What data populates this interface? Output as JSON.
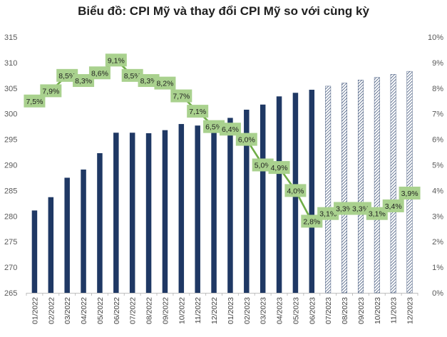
{
  "chart_data": {
    "type": "bar+line",
    "title": "Biểu đồ: CPI Mỹ và thay đổi CPI Mỹ so với cùng kỳ",
    "categories": [
      "01/2022",
      "02/2022",
      "03/2022",
      "04/2022",
      "05/2022",
      "06/2022",
      "07/2022",
      "08/2022",
      "09/2022",
      "10/2022",
      "11/2022",
      "12/2022",
      "01/2023",
      "02/2023",
      "03/2023",
      "04/2023",
      "05/2023",
      "06/2023",
      "07/2023",
      "08/2023",
      "09/2023",
      "10/2023",
      "11/2023",
      "12/2023"
    ],
    "series": [
      {
        "name": "CPI Mỹ",
        "type": "bar",
        "axis": "left",
        "values": [
          281.1,
          283.7,
          287.5,
          289.1,
          292.3,
          296.3,
          296.3,
          296.2,
          296.8,
          298.0,
          297.7,
          296.8,
          299.2,
          300.8,
          301.8,
          303.4,
          304.1,
          304.7,
          305.4,
          306.0,
          306.6,
          307.1,
          307.7,
          308.3
        ],
        "forecast_from_index": 18,
        "color": "#1f3864"
      },
      {
        "name": "Thay đổi CPI Mỹ so với cùng kỳ",
        "type": "line",
        "axis": "right",
        "values": [
          7.5,
          7.9,
          8.5,
          8.3,
          8.6,
          9.1,
          8.5,
          8.3,
          8.2,
          7.7,
          7.1,
          6.5,
          6.4,
          6.0,
          5.0,
          4.9,
          4.0,
          2.8,
          3.1,
          3.3,
          3.3,
          3.1,
          3.4,
          3.9
        ],
        "labels": [
          "7,5%",
          "7,9%",
          "8,5%",
          "8,3%",
          "8,6%",
          "9,1%",
          "8,5%",
          "8,3%",
          "8,2%",
          "7,7%",
          "7,1%",
          "6,5%",
          "6,4%",
          "6,0%",
          "5,0%",
          "4,9%",
          "4,0%",
          "2,8%",
          "3,1%",
          "3,3%",
          "3,3%",
          "3,1%",
          "3,4%",
          "3,9%"
        ],
        "color": "#70ad47",
        "label_bg": "#a9d18e"
      }
    ],
    "y_left": {
      "min": 265,
      "max": 315,
      "step": 5,
      "ticks": [
        "265",
        "270",
        "275",
        "280",
        "285",
        "290",
        "295",
        "300",
        "305",
        "310",
        "315"
      ]
    },
    "y_right": {
      "min": 0,
      "max": 10,
      "step": 1,
      "ticks": [
        "0%",
        "1%",
        "2%",
        "3%",
        "4%",
        "5%",
        "6%",
        "7%",
        "8%",
        "9%",
        "10%"
      ]
    },
    "grid": false,
    "legend": "none"
  }
}
